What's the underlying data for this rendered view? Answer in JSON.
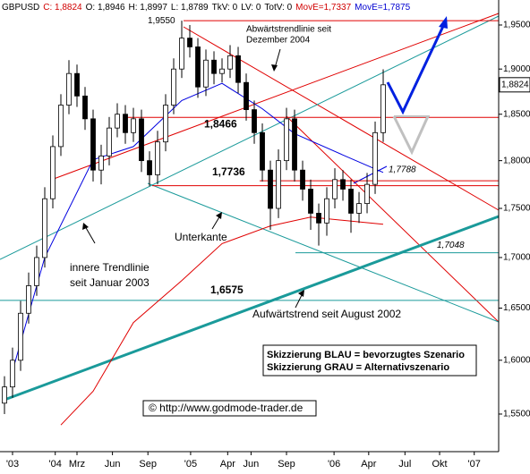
{
  "chart_data": {
    "type": "candlestick",
    "header": [
      {
        "text": "GBPUSD",
        "color": "#000000"
      },
      {
        "text": "C: 1,8824",
        "color": "#d00000"
      },
      {
        "text": "O: 1,8946",
        "color": "#000000"
      },
      {
        "text": "H: 1,8997",
        "color": "#000000"
      },
      {
        "text": "L: 1,8789",
        "color": "#000000"
      },
      {
        "text": "TkV: 0",
        "color": "#000000"
      },
      {
        "text": "LV: 0",
        "color": "#000000"
      },
      {
        "text": "TotV: 0",
        "color": "#000000"
      },
      {
        "text": "MovE=1,7337",
        "color": "#d00000"
      },
      {
        "text": "MovE=1,7875",
        "color": "#0000d0"
      }
    ],
    "open": [
      1.56,
      1.575,
      1.6,
      1.645,
      1.672,
      1.7,
      1.76,
      1.815,
      1.86,
      1.895,
      1.87,
      1.845,
      1.79,
      1.805,
      1.835,
      1.85,
      1.83,
      1.845,
      1.8,
      1.785,
      1.82,
      1.86,
      1.9,
      1.935,
      1.925,
      1.88,
      1.91,
      1.895,
      1.9,
      1.915,
      1.885,
      1.855,
      1.83,
      1.79,
      1.75,
      1.8,
      1.845,
      1.79,
      1.77,
      1.745,
      1.735,
      1.76,
      1.78,
      1.77,
      1.745,
      1.755,
      1.775,
      1.83
    ],
    "high": [
      1.585,
      1.612,
      1.657,
      1.685,
      1.712,
      1.772,
      1.827,
      1.872,
      1.91,
      1.905,
      1.88,
      1.855,
      1.817,
      1.847,
      1.862,
      1.86,
      1.857,
      1.855,
      1.81,
      1.832,
      1.872,
      1.912,
      1.955,
      1.95,
      1.935,
      1.922,
      1.92,
      1.912,
      1.927,
      1.925,
      1.895,
      1.865,
      1.84,
      1.8,
      1.812,
      1.857,
      1.855,
      1.8,
      1.78,
      1.755,
      1.772,
      1.792,
      1.79,
      1.78,
      1.767,
      1.787,
      1.842,
      1.8997
    ],
    "low": [
      1.55,
      1.565,
      1.59,
      1.635,
      1.662,
      1.69,
      1.75,
      1.805,
      1.85,
      1.858,
      1.833,
      1.778,
      1.775,
      1.795,
      1.825,
      1.818,
      1.82,
      1.788,
      1.773,
      1.775,
      1.81,
      1.85,
      1.89,
      1.913,
      1.868,
      1.87,
      1.883,
      1.885,
      1.89,
      1.873,
      1.843,
      1.818,
      1.778,
      1.728,
      1.74,
      1.79,
      1.778,
      1.758,
      1.728,
      1.712,
      1.722,
      1.75,
      1.758,
      1.725,
      1.735,
      1.745,
      1.765,
      1.82
    ],
    "close": [
      1.575,
      1.6,
      1.645,
      1.672,
      1.7,
      1.76,
      1.815,
      1.86,
      1.895,
      1.87,
      1.845,
      1.79,
      1.805,
      1.835,
      1.85,
      1.83,
      1.845,
      1.8,
      1.785,
      1.82,
      1.86,
      1.9,
      1.935,
      1.925,
      1.88,
      1.91,
      1.895,
      1.9,
      1.915,
      1.885,
      1.855,
      1.83,
      1.79,
      1.75,
      1.8,
      1.845,
      1.79,
      1.77,
      1.745,
      1.735,
      1.76,
      1.78,
      1.77,
      1.745,
      1.755,
      1.775,
      1.83,
      1.8824
    ],
    "series": [
      {
        "color": "#e00000",
        "x": [
          7,
          11,
          16,
          22,
          27,
          33,
          38,
          47
        ],
        "values": [
          1.54,
          1.571,
          1.636,
          1.677,
          1.714,
          1.732,
          1.741,
          1.7337
        ]
      },
      {
        "color": "#0000e0",
        "x": [
          1,
          5,
          11,
          16,
          22,
          27,
          32,
          36,
          42,
          47
        ],
        "values": [
          1.59,
          1.7,
          1.801,
          1.815,
          1.865,
          1.884,
          1.856,
          1.829,
          1.806,
          1.7875
        ]
      }
    ],
    "log_scale": true,
    "ylim": [
      1.516,
      1.979
    ],
    "yticks": [
      {
        "value": 1.55,
        "label": "1,5500"
      },
      {
        "value": 1.6,
        "label": "1,6000"
      },
      {
        "value": 1.65,
        "label": "1,6500"
      },
      {
        "value": 1.7,
        "label": "1,7000"
      },
      {
        "value": 1.75,
        "label": "1,7500"
      },
      {
        "value": 1.8,
        "label": "1,8000"
      },
      {
        "value": 1.85,
        "label": "1,8500"
      },
      {
        "value": 1.9,
        "label": "1,9000"
      },
      {
        "value": 1.95,
        "label": "1,9500"
      }
    ],
    "xlim": [
      -0.556,
      61.33
    ],
    "xticks": [
      {
        "value": 1,
        "label": "'03"
      },
      {
        "value": 6.3,
        "label": "'04"
      },
      {
        "value": 9,
        "label": "Mrz"
      },
      {
        "value": 13.4,
        "label": "Jun"
      },
      {
        "value": 17.8,
        "label": "Sep"
      },
      {
        "value": 23.1,
        "label": "'05"
      },
      {
        "value": 27.7,
        "label": "Apr"
      },
      {
        "value": 30.6,
        "label": "Jun"
      },
      {
        "value": 35,
        "label": "Sep"
      },
      {
        "value": 40.9,
        "label": "'06"
      },
      {
        "value": 45.2,
        "label": "Apr"
      },
      {
        "value": 49.7,
        "label": "Jul"
      },
      {
        "value": 54,
        "label": "Okt"
      },
      {
        "value": 58.3,
        "label": "'07"
      }
    ],
    "last_price": {
      "value": 1.8824,
      "label": "1,8824"
    },
    "levels": [
      {
        "value": 1.955,
        "label": "1,9550",
        "color": "#e00000"
      },
      {
        "value": 1.8466,
        "label": "1,8466",
        "color": "#e00000"
      },
      {
        "value": 1.7788,
        "label": "1,7788",
        "color": "#e00000"
      },
      {
        "value": 1.7736,
        "label": "1,7736",
        "color": "#e00000"
      },
      {
        "value": 1.7048,
        "label": "1,7048",
        "color": "#1a9a9a"
      },
      {
        "value": 1.6575,
        "label": "1,6575",
        "color": "#1a9a9a"
      }
    ],
    "annotations": {
      "downtrend_1": "Abwärtstrendlinie seit",
      "downtrend_2": "Dezember 2004",
      "lower_edge": "Unterkante",
      "inner_1": "innere Trendlinie",
      "inner_2": "seit Januar 2003",
      "uptrend": "Aufwärtstrend seit August 2002",
      "scenario_blue": "Skizzierung BLAU = bevorzugtes Szenario",
      "scenario_grey": "Skizzierung GRAU = Alternativszenario",
      "copyright": "© http://www.godmode-trader.de"
    }
  }
}
